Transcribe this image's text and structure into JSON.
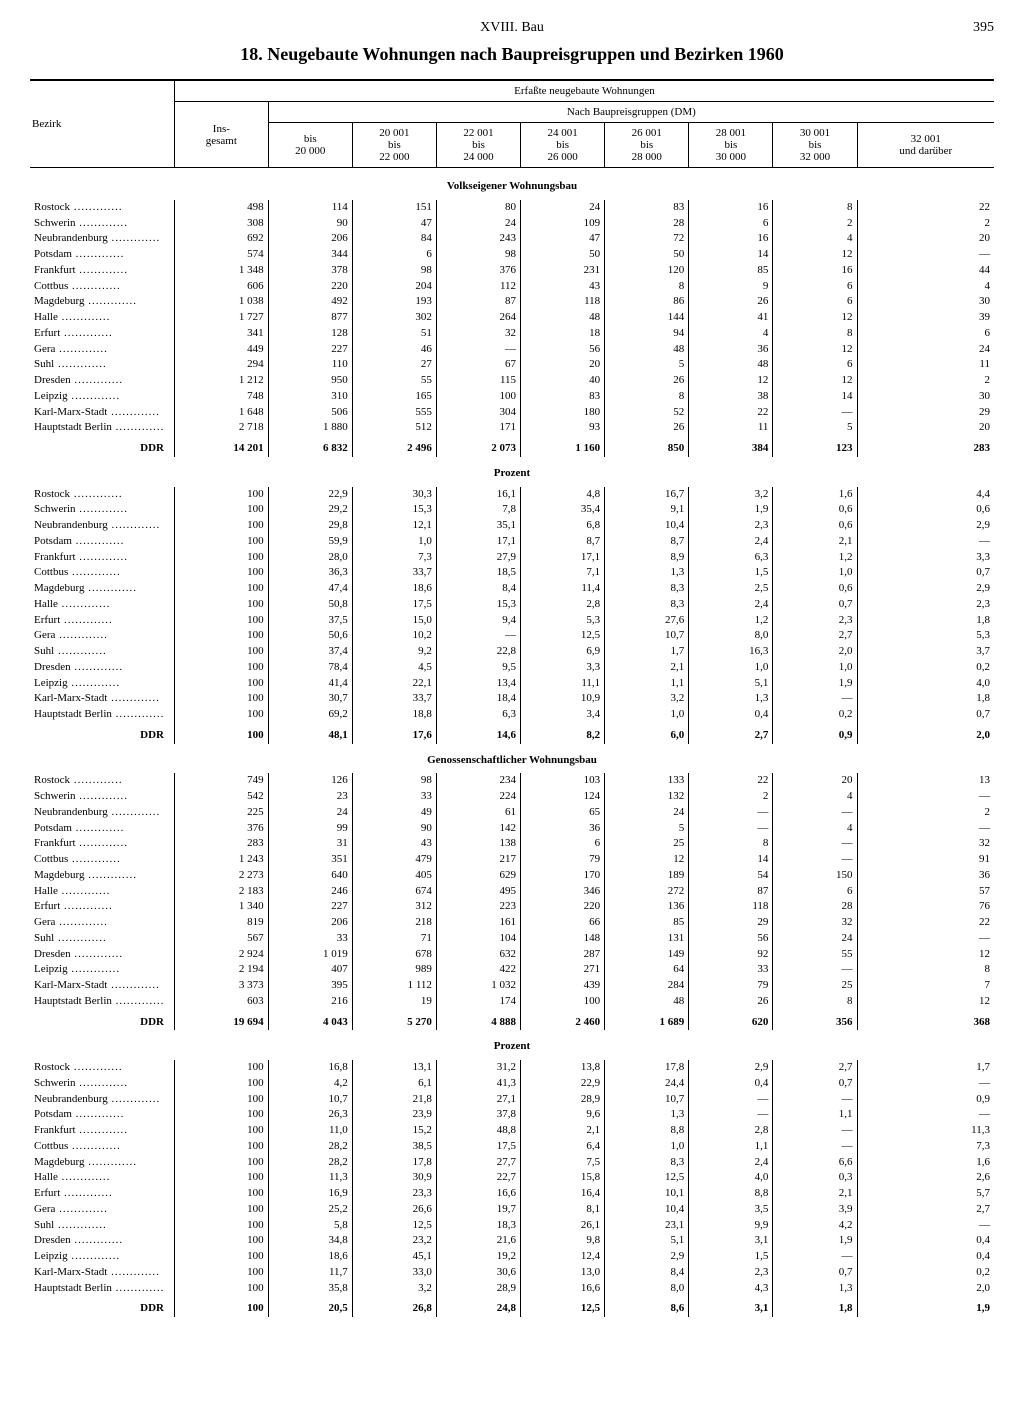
{
  "page": {
    "chapter": "XVIII. Bau",
    "number": "395"
  },
  "title": "18. Neugebaute Wohnungen nach Baupreisgruppen und Bezirken 1960",
  "head": {
    "bezirk": "Bezirk",
    "span_all": "Erfaßte neugebaute Wohnungen",
    "span_groups": "Nach Baupreisgruppen (DM)",
    "col_insgesamt": "Ins-\ngesamt",
    "groups": [
      "bis\n20 000",
      "20 001\nbis\n22 000",
      "22 001\nbis\n24 000",
      "24 001\nbis\n26 000",
      "26 001\nbis\n28 000",
      "28 001\nbis\n30 000",
      "30 001\nbis\n32 000",
      "32 001\nund darüber"
    ]
  },
  "sections": [
    {
      "title": "Volkseigener Wohnungsbau",
      "rows": [
        {
          "name": "Rostock",
          "vals": [
            "498",
            "114",
            "151",
            "80",
            "24",
            "83",
            "16",
            "8",
            "22"
          ]
        },
        {
          "name": "Schwerin",
          "vals": [
            "308",
            "90",
            "47",
            "24",
            "109",
            "28",
            "6",
            "2",
            "2"
          ]
        },
        {
          "name": "Neubrandenburg",
          "vals": [
            "692",
            "206",
            "84",
            "243",
            "47",
            "72",
            "16",
            "4",
            "20"
          ]
        },
        {
          "name": "Potsdam",
          "vals": [
            "574",
            "344",
            "6",
            "98",
            "50",
            "50",
            "14",
            "12",
            "—"
          ]
        },
        {
          "name": "Frankfurt",
          "vals": [
            "1 348",
            "378",
            "98",
            "376",
            "231",
            "120",
            "85",
            "16",
            "44"
          ]
        },
        {
          "name": "Cottbus",
          "vals": [
            "606",
            "220",
            "204",
            "112",
            "43",
            "8",
            "9",
            "6",
            "4"
          ]
        },
        {
          "name": "Magdeburg",
          "vals": [
            "1 038",
            "492",
            "193",
            "87",
            "118",
            "86",
            "26",
            "6",
            "30"
          ]
        },
        {
          "name": "Halle",
          "vals": [
            "1 727",
            "877",
            "302",
            "264",
            "48",
            "144",
            "41",
            "12",
            "39"
          ]
        },
        {
          "name": "Erfurt",
          "vals": [
            "341",
            "128",
            "51",
            "32",
            "18",
            "94",
            "4",
            "8",
            "6"
          ]
        },
        {
          "name": "Gera",
          "vals": [
            "449",
            "227",
            "46",
            "—",
            "56",
            "48",
            "36",
            "12",
            "24"
          ]
        },
        {
          "name": "Suhl",
          "vals": [
            "294",
            "110",
            "27",
            "67",
            "20",
            "5",
            "48",
            "6",
            "11"
          ]
        },
        {
          "name": "Dresden",
          "vals": [
            "1 212",
            "950",
            "55",
            "115",
            "40",
            "26",
            "12",
            "12",
            "2"
          ]
        },
        {
          "name": "Leipzig",
          "vals": [
            "748",
            "310",
            "165",
            "100",
            "83",
            "8",
            "38",
            "14",
            "30"
          ]
        },
        {
          "name": "Karl-Marx-Stadt",
          "vals": [
            "1 648",
            "506",
            "555",
            "304",
            "180",
            "52",
            "22",
            "—",
            "29"
          ]
        },
        {
          "name": "Hauptstadt Berlin",
          "vals": [
            "2 718",
            "1 880",
            "512",
            "171",
            "93",
            "26",
            "11",
            "5",
            "20"
          ]
        }
      ],
      "total": {
        "name": "DDR",
        "vals": [
          "14 201",
          "6 832",
          "2 496",
          "2 073",
          "1 160",
          "850",
          "384",
          "123",
          "283"
        ]
      }
    },
    {
      "title": "Prozent",
      "rows": [
        {
          "name": "Rostock",
          "vals": [
            "100",
            "22,9",
            "30,3",
            "16,1",
            "4,8",
            "16,7",
            "3,2",
            "1,6",
            "4,4"
          ]
        },
        {
          "name": "Schwerin",
          "vals": [
            "100",
            "29,2",
            "15,3",
            "7,8",
            "35,4",
            "9,1",
            "1,9",
            "0,6",
            "0,6"
          ]
        },
        {
          "name": "Neubrandenburg",
          "vals": [
            "100",
            "29,8",
            "12,1",
            "35,1",
            "6,8",
            "10,4",
            "2,3",
            "0,6",
            "2,9"
          ]
        },
        {
          "name": "Potsdam",
          "vals": [
            "100",
            "59,9",
            "1,0",
            "17,1",
            "8,7",
            "8,7",
            "2,4",
            "2,1",
            "—"
          ]
        },
        {
          "name": "Frankfurt",
          "vals": [
            "100",
            "28,0",
            "7,3",
            "27,9",
            "17,1",
            "8,9",
            "6,3",
            "1,2",
            "3,3"
          ]
        },
        {
          "name": "Cottbus",
          "vals": [
            "100",
            "36,3",
            "33,7",
            "18,5",
            "7,1",
            "1,3",
            "1,5",
            "1,0",
            "0,7"
          ]
        },
        {
          "name": "Magdeburg",
          "vals": [
            "100",
            "47,4",
            "18,6",
            "8,4",
            "11,4",
            "8,3",
            "2,5",
            "0,6",
            "2,9"
          ]
        },
        {
          "name": "Halle",
          "vals": [
            "100",
            "50,8",
            "17,5",
            "15,3",
            "2,8",
            "8,3",
            "2,4",
            "0,7",
            "2,3"
          ]
        },
        {
          "name": "Erfurt",
          "vals": [
            "100",
            "37,5",
            "15,0",
            "9,4",
            "5,3",
            "27,6",
            "1,2",
            "2,3",
            "1,8"
          ]
        },
        {
          "name": "Gera",
          "vals": [
            "100",
            "50,6",
            "10,2",
            "—",
            "12,5",
            "10,7",
            "8,0",
            "2,7",
            "5,3"
          ]
        },
        {
          "name": "Suhl",
          "vals": [
            "100",
            "37,4",
            "9,2",
            "22,8",
            "6,9",
            "1,7",
            "16,3",
            "2,0",
            "3,7"
          ]
        },
        {
          "name": "Dresden",
          "vals": [
            "100",
            "78,4",
            "4,5",
            "9,5",
            "3,3",
            "2,1",
            "1,0",
            "1,0",
            "0,2"
          ]
        },
        {
          "name": "Leipzig",
          "vals": [
            "100",
            "41,4",
            "22,1",
            "13,4",
            "11,1",
            "1,1",
            "5,1",
            "1,9",
            "4,0"
          ]
        },
        {
          "name": "Karl-Marx-Stadt",
          "vals": [
            "100",
            "30,7",
            "33,7",
            "18,4",
            "10,9",
            "3,2",
            "1,3",
            "—",
            "1,8"
          ]
        },
        {
          "name": "Hauptstadt Berlin",
          "vals": [
            "100",
            "69,2",
            "18,8",
            "6,3",
            "3,4",
            "1,0",
            "0,4",
            "0,2",
            "0,7"
          ]
        }
      ],
      "total": {
        "name": "DDR",
        "vals": [
          "100",
          "48,1",
          "17,6",
          "14,6",
          "8,2",
          "6,0",
          "2,7",
          "0,9",
          "2,0"
        ]
      }
    },
    {
      "title": "Genossenschaftlicher Wohnungsbau",
      "rows": [
        {
          "name": "Rostock",
          "vals": [
            "749",
            "126",
            "98",
            "234",
            "103",
            "133",
            "22",
            "20",
            "13"
          ]
        },
        {
          "name": "Schwerin",
          "vals": [
            "542",
            "23",
            "33",
            "224",
            "124",
            "132",
            "2",
            "4",
            "—"
          ]
        },
        {
          "name": "Neubrandenburg",
          "vals": [
            "225",
            "24",
            "49",
            "61",
            "65",
            "24",
            "—",
            "—",
            "2"
          ]
        },
        {
          "name": "Potsdam",
          "vals": [
            "376",
            "99",
            "90",
            "142",
            "36",
            "5",
            "—",
            "4",
            "—"
          ]
        },
        {
          "name": "Frankfurt",
          "vals": [
            "283",
            "31",
            "43",
            "138",
            "6",
            "25",
            "8",
            "—",
            "32"
          ]
        },
        {
          "name": "Cottbus",
          "vals": [
            "1 243",
            "351",
            "479",
            "217",
            "79",
            "12",
            "14",
            "—",
            "91"
          ]
        },
        {
          "name": "Magdeburg",
          "vals": [
            "2 273",
            "640",
            "405",
            "629",
            "170",
            "189",
            "54",
            "150",
            "36"
          ]
        },
        {
          "name": "Halle",
          "vals": [
            "2 183",
            "246",
            "674",
            "495",
            "346",
            "272",
            "87",
            "6",
            "57"
          ]
        },
        {
          "name": "Erfurt",
          "vals": [
            "1 340",
            "227",
            "312",
            "223",
            "220",
            "136",
            "118",
            "28",
            "76"
          ]
        },
        {
          "name": "Gera",
          "vals": [
            "819",
            "206",
            "218",
            "161",
            "66",
            "85",
            "29",
            "32",
            "22"
          ]
        },
        {
          "name": "Suhl",
          "vals": [
            "567",
            "33",
            "71",
            "104",
            "148",
            "131",
            "56",
            "24",
            "—"
          ]
        },
        {
          "name": "Dresden",
          "vals": [
            "2 924",
            "1 019",
            "678",
            "632",
            "287",
            "149",
            "92",
            "55",
            "12"
          ]
        },
        {
          "name": "Leipzig",
          "vals": [
            "2 194",
            "407",
            "989",
            "422",
            "271",
            "64",
            "33",
            "—",
            "8"
          ]
        },
        {
          "name": "Karl-Marx-Stadt",
          "vals": [
            "3 373",
            "395",
            "1 112",
            "1 032",
            "439",
            "284",
            "79",
            "25",
            "7"
          ]
        },
        {
          "name": "Hauptstadt Berlin",
          "vals": [
            "603",
            "216",
            "19",
            "174",
            "100",
            "48",
            "26",
            "8",
            "12"
          ]
        }
      ],
      "total": {
        "name": "DDR",
        "vals": [
          "19 694",
          "4 043",
          "5 270",
          "4 888",
          "2 460",
          "1 689",
          "620",
          "356",
          "368"
        ]
      }
    },
    {
      "title": "Prozent",
      "rows": [
        {
          "name": "Rostock",
          "vals": [
            "100",
            "16,8",
            "13,1",
            "31,2",
            "13,8",
            "17,8",
            "2,9",
            "2,7",
            "1,7"
          ]
        },
        {
          "name": "Schwerin",
          "vals": [
            "100",
            "4,2",
            "6,1",
            "41,3",
            "22,9",
            "24,4",
            "0,4",
            "0,7",
            "—"
          ]
        },
        {
          "name": "Neubrandenburg",
          "vals": [
            "100",
            "10,7",
            "21,8",
            "27,1",
            "28,9",
            "10,7",
            "—",
            "—",
            "0,9"
          ]
        },
        {
          "name": "Potsdam",
          "vals": [
            "100",
            "26,3",
            "23,9",
            "37,8",
            "9,6",
            "1,3",
            "—",
            "1,1",
            "—"
          ]
        },
        {
          "name": "Frankfurt",
          "vals": [
            "100",
            "11,0",
            "15,2",
            "48,8",
            "2,1",
            "8,8",
            "2,8",
            "—",
            "11,3"
          ]
        },
        {
          "name": "Cottbus",
          "vals": [
            "100",
            "28,2",
            "38,5",
            "17,5",
            "6,4",
            "1,0",
            "1,1",
            "—",
            "7,3"
          ]
        },
        {
          "name": "Magdeburg",
          "vals": [
            "100",
            "28,2",
            "17,8",
            "27,7",
            "7,5",
            "8,3",
            "2,4",
            "6,6",
            "1,6"
          ]
        },
        {
          "name": "Halle",
          "vals": [
            "100",
            "11,3",
            "30,9",
            "22,7",
            "15,8",
            "12,5",
            "4,0",
            "0,3",
            "2,6"
          ]
        },
        {
          "name": "Erfurt",
          "vals": [
            "100",
            "16,9",
            "23,3",
            "16,6",
            "16,4",
            "10,1",
            "8,8",
            "2,1",
            "5,7"
          ]
        },
        {
          "name": "Gera",
          "vals": [
            "100",
            "25,2",
            "26,6",
            "19,7",
            "8,1",
            "10,4",
            "3,5",
            "3,9",
            "2,7"
          ]
        },
        {
          "name": "Suhl",
          "vals": [
            "100",
            "5,8",
            "12,5",
            "18,3",
            "26,1",
            "23,1",
            "9,9",
            "4,2",
            "—"
          ]
        },
        {
          "name": "Dresden",
          "vals": [
            "100",
            "34,8",
            "23,2",
            "21,6",
            "9,8",
            "5,1",
            "3,1",
            "1,9",
            "0,4"
          ]
        },
        {
          "name": "Leipzig",
          "vals": [
            "100",
            "18,6",
            "45,1",
            "19,2",
            "12,4",
            "2,9",
            "1,5",
            "—",
            "0,4"
          ]
        },
        {
          "name": "Karl-Marx-Stadt",
          "vals": [
            "100",
            "11,7",
            "33,0",
            "30,6",
            "13,0",
            "8,4",
            "2,3",
            "0,7",
            "0,2"
          ]
        },
        {
          "name": "Hauptstadt Berlin",
          "vals": [
            "100",
            "35,8",
            "3,2",
            "28,9",
            "16,6",
            "8,0",
            "4,3",
            "1,3",
            "2,0"
          ]
        }
      ],
      "total": {
        "name": "DDR",
        "vals": [
          "100",
          "20,5",
          "26,8",
          "24,8",
          "12,5",
          "8,6",
          "3,1",
          "1,8",
          "1,9"
        ]
      }
    }
  ]
}
